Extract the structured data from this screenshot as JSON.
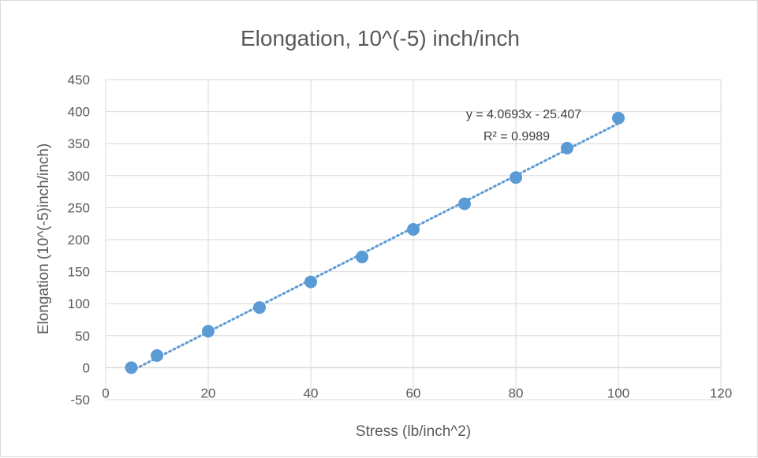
{
  "chart_data": {
    "type": "scatter",
    "title": "Elongation, 10^(-5) inch/inch",
    "xlabel": "Stress (lb/inch^2)",
    "ylabel": "Elongation (10^(-5)inch/inch)",
    "xlim": [
      0,
      120
    ],
    "ylim": [
      -50,
      450
    ],
    "x_ticks": [
      0,
      20,
      40,
      60,
      80,
      100,
      120
    ],
    "y_ticks": [
      -50,
      0,
      50,
      100,
      150,
      200,
      250,
      300,
      350,
      400,
      450
    ],
    "grid": true,
    "series": [
      {
        "points": [
          {
            "x": 5,
            "y": 0
          },
          {
            "x": 10,
            "y": 19
          },
          {
            "x": 20,
            "y": 57
          },
          {
            "x": 30,
            "y": 94
          },
          {
            "x": 40,
            "y": 134
          },
          {
            "x": 50,
            "y": 173
          },
          {
            "x": 60,
            "y": 216
          },
          {
            "x": 70,
            "y": 256
          },
          {
            "x": 80,
            "y": 297
          },
          {
            "x": 90,
            "y": 343
          },
          {
            "x": 100,
            "y": 390
          }
        ],
        "color": "#5b9bd5"
      }
    ],
    "trendline": {
      "type": "linear",
      "slope": 4.0693,
      "intercept": -25.407,
      "x_range": [
        5,
        100
      ],
      "style": "dotted",
      "color": "#5b9bd5",
      "equation_label": "y = 4.0693x - 25.407",
      "r2_label": "R² = 0.9989"
    },
    "colors": {
      "grid": "#d9d9d9",
      "text": "#595959"
    }
  }
}
